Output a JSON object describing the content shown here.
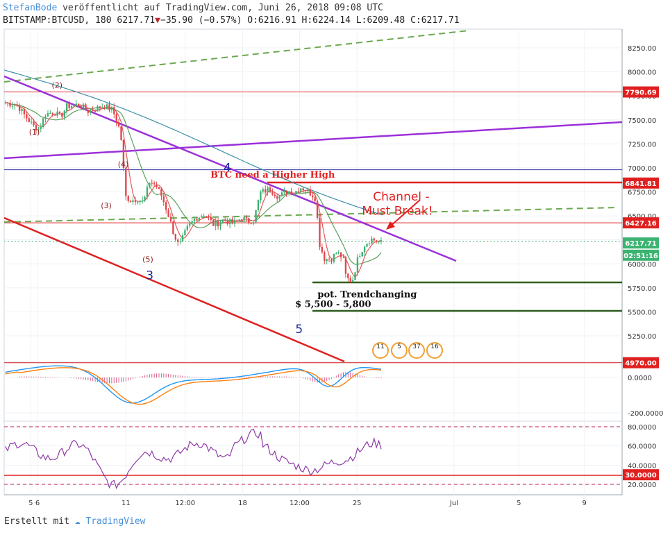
{
  "header": {
    "author": "StefanBode",
    "published": "veröffentlicht auf TradingView.com, Juni 26, 2018 09:08 UTC",
    "symbol": "BITSTAMP:BTCUSD, 180",
    "last": "6217.71",
    "change": "−35.90 (−0.57%)",
    "open": "O:6216.91",
    "high": "H:6224.14",
    "low": "L:6209.48",
    "close": "C:6217.71"
  },
  "footer": {
    "prefix": "Erstellt mit",
    "brand": "TradingView"
  },
  "colors": {
    "up": "#3cb371",
    "down": "#e0474c",
    "ma_fast": "#e05a5a",
    "ma_mid": "#5aa05a",
    "ma_slow": "#3d8fa8",
    "purple": "#9b30d9",
    "red_line": "#e02020",
    "green_dash": "#6aa84f"
  },
  "chart_data": [
    {
      "type": "candlestick",
      "ylim": [
        4950,
        8450
      ],
      "y_ticks": [
        "8250.00",
        "8000.00",
        "7750.00",
        "7500.00",
        "7250.00",
        "7000.00",
        "6750.00",
        "6500.00",
        "6250.00",
        "6000.00",
        "5750.00",
        "5500.00",
        "5250.00"
      ],
      "x_ticks": [
        "5",
        "6",
        "11",
        "12:00",
        "18",
        "12:00",
        "25",
        "Jul",
        "5",
        "9"
      ],
      "price_tags": [
        {
          "label": "7790.69",
          "value": 7790.69,
          "color": "#e02020"
        },
        {
          "label": "6841.81",
          "value": 6841.81,
          "color": "#e02020"
        },
        {
          "label": "6427.16",
          "value": 6427.16,
          "color": "#e02020"
        },
        {
          "label": "6217.71",
          "value": 6217.71,
          "color": "#3cb371"
        },
        {
          "label": "02:51:16",
          "value": 6090,
          "color": "#3cb371"
        },
        {
          "label": "4970.00",
          "value": 4970.0,
          "color": "#e02020"
        }
      ],
      "horizontal_levels": [
        {
          "value": 7790.69,
          "color": "#e02020"
        },
        {
          "value": 6980,
          "color": "#3333aa"
        },
        {
          "value": 6427.16,
          "color": "#e02020"
        },
        {
          "value": 4970,
          "color": "#e02020"
        }
      ],
      "annotations": [
        {
          "text": "(2)",
          "x": 0.14,
          "y": 7835,
          "color": "#8b1a1a"
        },
        {
          "text": "(1)",
          "x": 0.08,
          "y": 7345,
          "color": "#8b1a1a"
        },
        {
          "text": "(4)",
          "x": 0.315,
          "y": 7010,
          "color": "#8b1a1a"
        },
        {
          "text": "(3)",
          "x": 0.27,
          "y": 6580,
          "color": "#8b1a1a"
        },
        {
          "text": "(5)",
          "x": 0.38,
          "y": 6020,
          "color": "#8b1a1a"
        },
        {
          "text": "3",
          "x": 0.385,
          "y": 5840,
          "color": "#1a2a9a"
        },
        {
          "text": "4",
          "x": 0.59,
          "y": 6960,
          "color": "#1a2a9a"
        },
        {
          "text": "5",
          "x": 0.78,
          "y": 5280,
          "color": "#1a2a9a"
        },
        {
          "text": "BTC need a Higher High",
          "x": 0.71,
          "y": 6900,
          "color": "#e02020"
        },
        {
          "text": "Channel -",
          "x": 1.05,
          "y": 6660,
          "color": "#e02020"
        },
        {
          "text": "Must Break!",
          "x": 1.04,
          "y": 6510,
          "color": "#e02020"
        },
        {
          "text": "pot. Trendchanging",
          "x": 0.96,
          "y": 5650,
          "color": "#111111"
        },
        {
          "text": "$ 5,500 - 5,800",
          "x": 0.87,
          "y": 5550,
          "color": "#111111"
        }
      ],
      "event_badges": [
        "11",
        "5",
        "37",
        "16"
      ]
    },
    {
      "type": "line",
      "name": "MACD",
      "ylim": [
        -280,
        120
      ],
      "y_ticks": [
        "0.0000",
        "-200.0000"
      ]
    },
    {
      "type": "line",
      "name": "RSI",
      "ylim": [
        14,
        86
      ],
      "y_ticks": [
        "80.0000",
        "60.0000",
        "40.0000",
        "20.0000"
      ],
      "price_tags": [
        {
          "label": "30.0000",
          "value": 30,
          "color": "#e02020"
        }
      ]
    }
  ]
}
